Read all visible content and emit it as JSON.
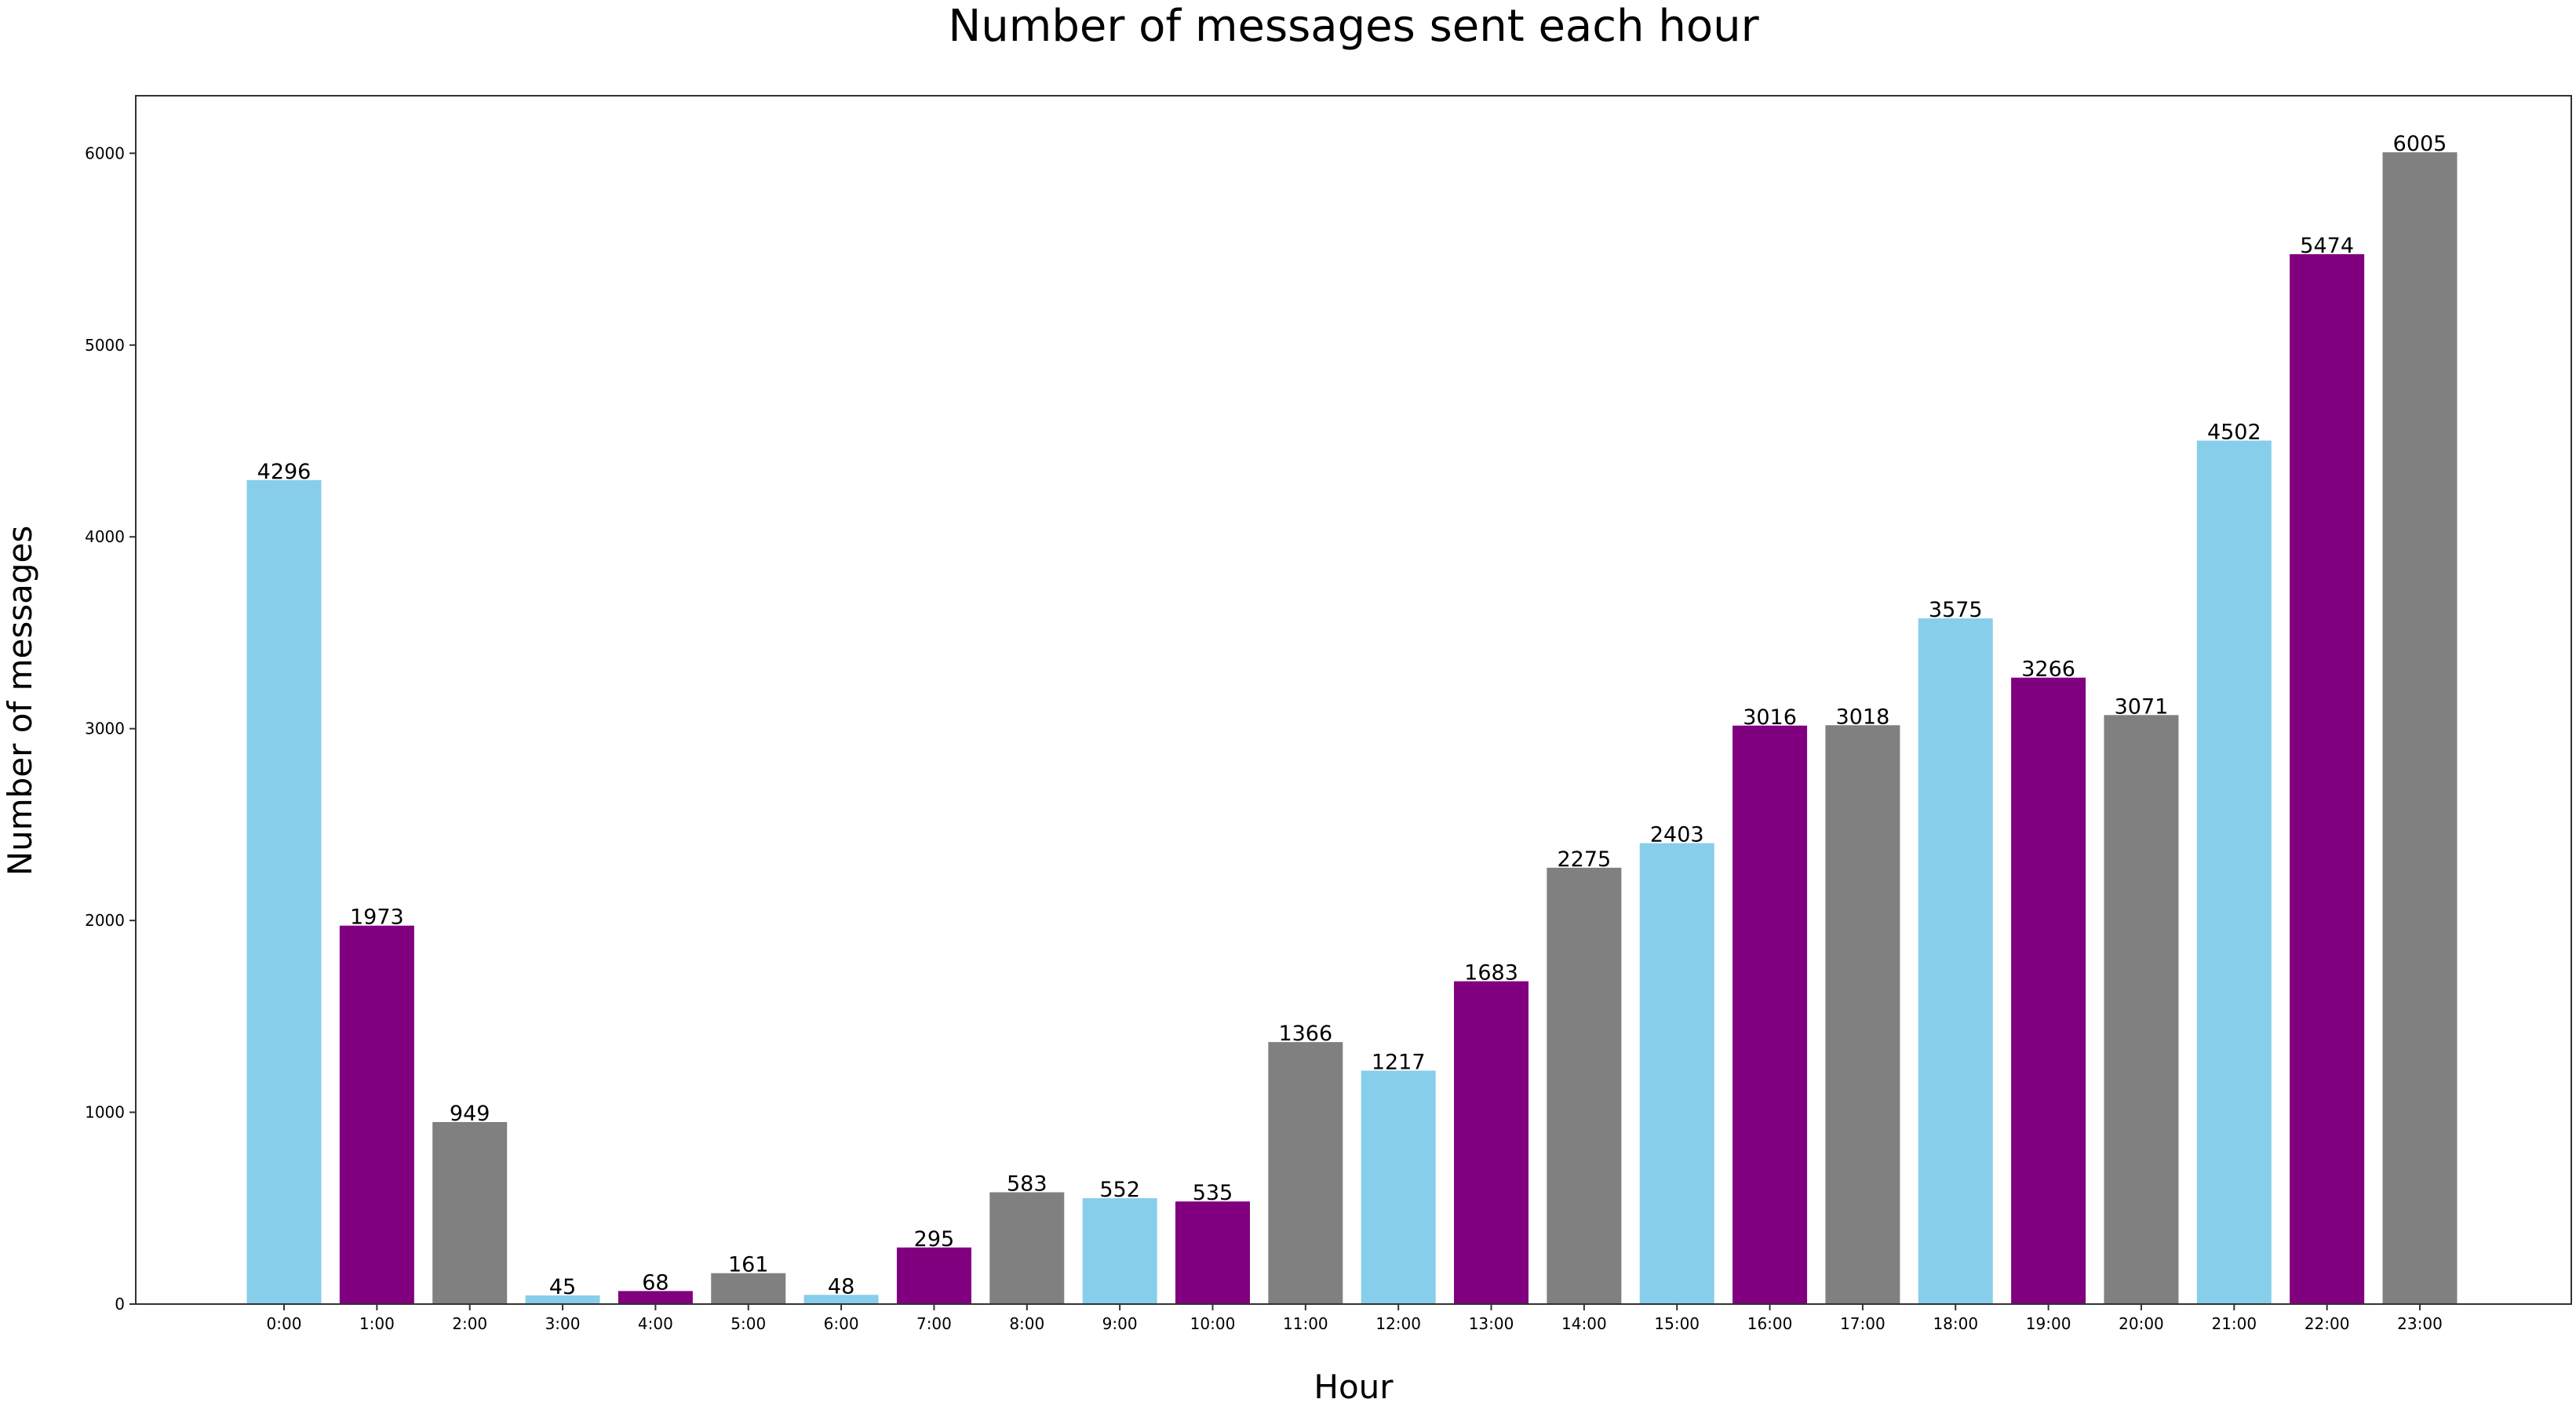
{
  "chart_data": {
    "type": "bar",
    "title": "Number of messages sent each hour",
    "xlabel": "Hour",
    "ylabel": "Number of messages",
    "categories": [
      "0:00",
      "1:00",
      "2:00",
      "3:00",
      "4:00",
      "5:00",
      "6:00",
      "7:00",
      "8:00",
      "9:00",
      "10:00",
      "11:00",
      "12:00",
      "13:00",
      "14:00",
      "15:00",
      "16:00",
      "17:00",
      "18:00",
      "19:00",
      "20:00",
      "21:00",
      "22:00",
      "23:00"
    ],
    "values": [
      4296,
      1973,
      949,
      45,
      68,
      161,
      48,
      295,
      583,
      552,
      535,
      1366,
      1217,
      1683,
      2275,
      2403,
      3016,
      3018,
      3575,
      3266,
      3071,
      4502,
      5474,
      6005
    ],
    "bar_colors": [
      "#87ceeb",
      "#800080",
      "#808080",
      "#87ceeb",
      "#800080",
      "#808080",
      "#87ceeb",
      "#800080",
      "#808080",
      "#87ceeb",
      "#800080",
      "#808080",
      "#87ceeb",
      "#800080",
      "#808080",
      "#87ceeb",
      "#800080",
      "#808080",
      "#87ceeb",
      "#800080",
      "#808080",
      "#87ceeb",
      "#800080",
      "#808080"
    ],
    "ylim": [
      0,
      6300
    ],
    "yticks": [
      0,
      1000,
      2000,
      3000,
      4000,
      5000,
      6000
    ],
    "grid": false,
    "data_labels": true
  }
}
